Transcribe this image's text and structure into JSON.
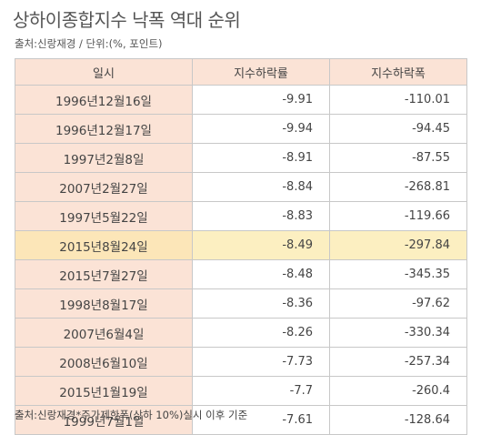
{
  "title": "상하이종합지수 낙폭 역대 순위",
  "subtitle": "출처:신랑재경 / 단위:(%, 포인트)",
  "table": {
    "headers": [
      "일시",
      "지수하락률",
      "지수하락폭"
    ],
    "rows": [
      [
        "1996년12월16일",
        "-9.91",
        "-110.01"
      ],
      [
        "1996년12월17일",
        "-9.94",
        "-94.45"
      ],
      [
        "1997년2월8일",
        "-8.91",
        "-87.55"
      ],
      [
        "2007년2월27일",
        "-8.84",
        "-268.81"
      ],
      [
        "1997년5월22일",
        "-8.83",
        "-119.66"
      ],
      [
        "2015년8월24일",
        "-8.49",
        "-297.84"
      ],
      [
        "2015년7월27일",
        "-8.48",
        "-345.35"
      ],
      [
        "1998년8월17일",
        "-8.36",
        "-97.62"
      ],
      [
        "2007년6월4일",
        "-8.26",
        "-330.34"
      ],
      [
        "2008년6월10일",
        "-7.73",
        "-257.34"
      ],
      [
        "2015년1월19일",
        "-7.7",
        "-260.4"
      ],
      [
        "1999년7월1일",
        "-7.61",
        "-128.64"
      ]
    ],
    "highlight_row": 5
  },
  "footer": "출처:신랑재경*주가제한폭(상하 10%)실시 이후 기준",
  "colors": {
    "header_bg": "#fbe3d6",
    "highlight_bg": "#fcefc1",
    "border": "#c8c8c8"
  }
}
